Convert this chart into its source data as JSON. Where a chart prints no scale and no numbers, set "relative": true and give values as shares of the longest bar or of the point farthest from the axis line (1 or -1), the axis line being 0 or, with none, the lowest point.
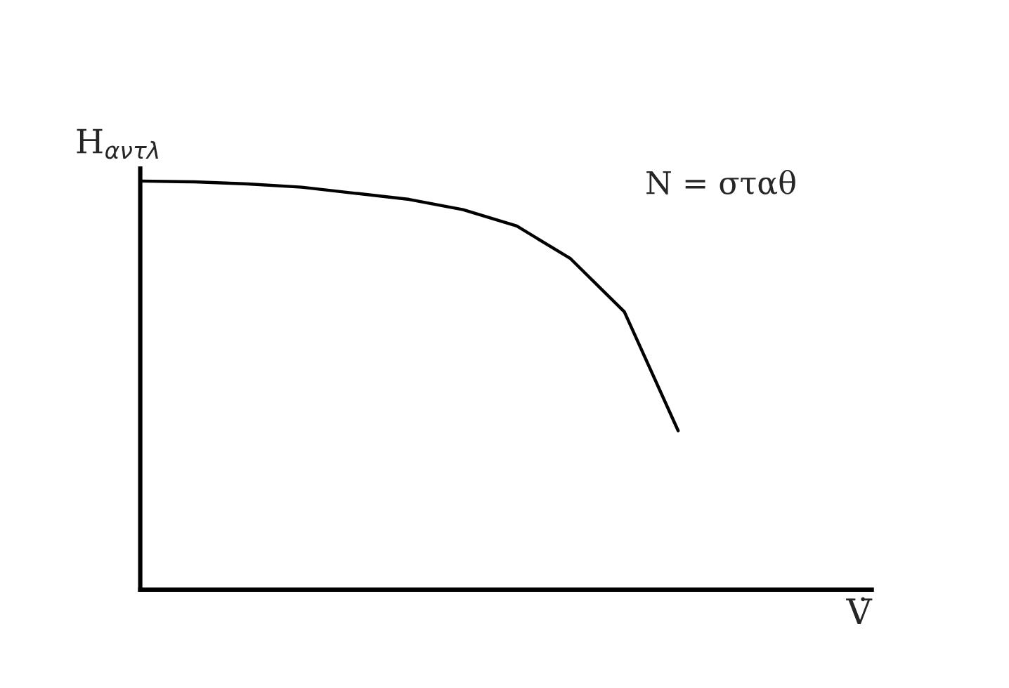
{
  "chart_data": {
    "type": "line",
    "relative": true,
    "ylabel": "H$_{αντλ}$",
    "xlabel": "V̇",
    "annotations": [
      "N = σταθ"
    ],
    "categories": [
      null,
      null,
      null,
      null,
      null,
      null,
      null,
      null,
      null,
      null,
      null,
      null,
      null,
      null
    ],
    "series": [
      {
        "color": "#000000",
        "values": [
          1.0,
          0.998,
          0.993,
          0.985,
          0.97,
          0.955,
          0.93,
          0.89,
          0.81,
          0.68,
          0.389,
          null,
          null,
          null
        ]
      }
    ],
    "tick_labels": false,
    "marker": "none",
    "line_style": "solid"
  }
}
